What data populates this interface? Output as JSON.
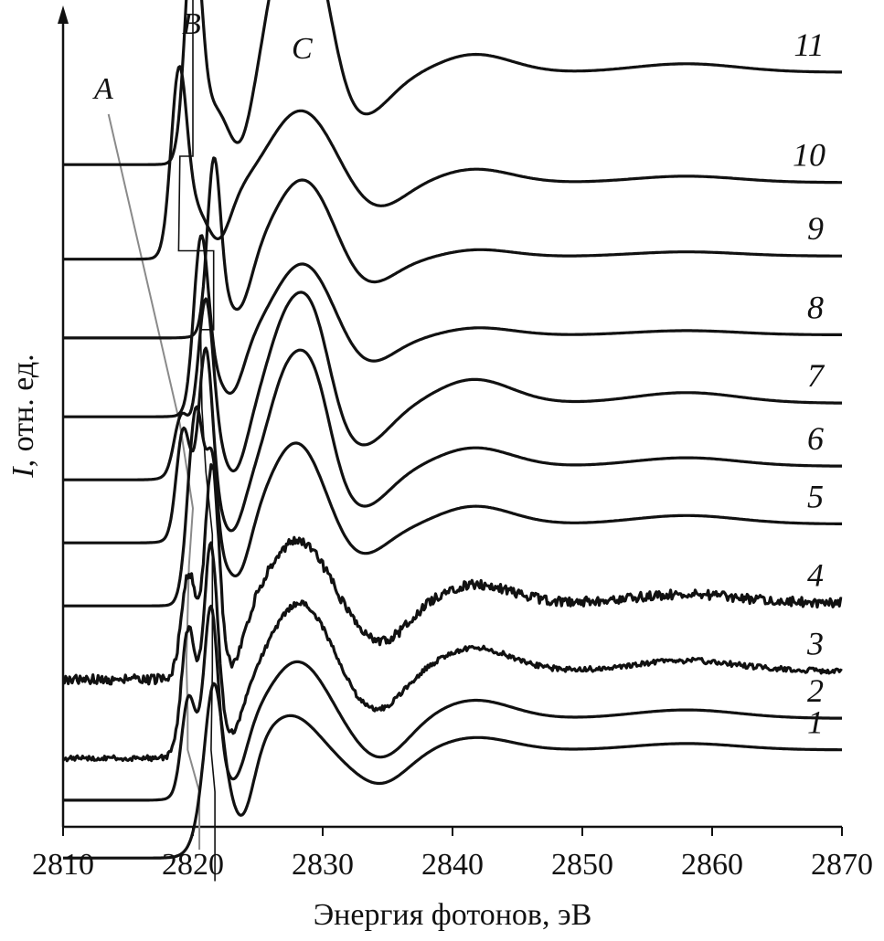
{
  "chart_data": {
    "type": "line",
    "title": "",
    "xlabel": "Энергия фотонов, эВ",
    "ylabel_italic": "I",
    "ylabel_rest": ", отн. ед.",
    "xlim": [
      2810,
      2870
    ],
    "xticks": [
      2810,
      2820,
      2830,
      2840,
      2850,
      2860,
      2870
    ],
    "grid": false,
    "legend": "none",
    "feature_labels": [
      "A",
      "B",
      "C"
    ],
    "feature_energies": {
      "A": 2819.6,
      "B": 2820.0,
      "C": 2828.5
    },
    "series": [
      {
        "name": "1",
        "baseline": 0.0,
        "edge": 2820.5,
        "edgeStep": 0.9,
        "peaks": [
          [
            2821.6,
            0.85,
            0.6
          ]
        ],
        "dip": [
          2823.8,
          0.6
        ],
        "broad": [
          [
            2827.5,
            0.45,
            2.2
          ]
        ],
        "lateMin": [
          2834.5,
          0.25
        ],
        "wiggle": 0.15,
        "tail": 0.35,
        "noise": 0
      },
      {
        "name": "2",
        "baseline": 0.55,
        "edge": 2819.6,
        "edgeStep": 0.55,
        "peaks": [
          [
            2819.6,
            0.7,
            0.5
          ],
          [
            2821.4,
            1.35,
            0.5
          ]
        ],
        "dip": [
          2823.2,
          0.45
        ],
        "broad": [
          [
            2828.0,
            0.75,
            2.4
          ]
        ],
        "lateMin": [
          2834.5,
          0.3
        ],
        "wiggle": 0.2,
        "tail": 0.45,
        "noise": 0
      },
      {
        "name": "3",
        "baseline": 0.95,
        "edge": 2819.6,
        "edgeStep": 0.55,
        "peaks": [
          [
            2819.6,
            0.95,
            0.5
          ],
          [
            2821.4,
            1.55,
            0.5
          ]
        ],
        "dip": [
          2823.0,
          0.4
        ],
        "broad": [
          [
            2828.2,
            0.9,
            2.4
          ]
        ],
        "lateMin": [
          2834.0,
          0.3
        ],
        "wiggle": 0.25,
        "tail": 0.5,
        "noise": 0.05
      },
      {
        "name": "4",
        "baseline": 1.7,
        "edge": 2819.6,
        "edgeStep": 0.5,
        "peaks": [
          [
            2819.6,
            0.75,
            0.5
          ],
          [
            2821.5,
            1.65,
            0.5
          ]
        ],
        "dip": [
          2823.0,
          0.45
        ],
        "broad": [
          [
            2828.0,
            0.8,
            2.4
          ]
        ],
        "lateMin": [
          2834.5,
          0.3
        ],
        "wiggle": 0.2,
        "tail": 0.45,
        "noise": 0.09
      },
      {
        "name": "5",
        "baseline": 2.4,
        "edge": 2820.2,
        "edgeStep": 0.55,
        "peaks": [
          [
            2820.2,
            1.6,
            0.6
          ],
          [
            2821.5,
            0.8,
            0.4
          ]
        ],
        "dip": [
          2823.5,
          0.4
        ],
        "broad": [
          [
            2828.0,
            1.0,
            2.3
          ]
        ],
        "lateMin": [
          2832.5,
          0.25
        ],
        "wiggle": 0.2,
        "tail": 0.45,
        "noise": 0
      },
      {
        "name": "6",
        "baseline": 3.0,
        "edge": 2819.2,
        "edgeStep": 0.55,
        "peaks": [
          [
            2819.2,
            0.8,
            0.5
          ],
          [
            2821.0,
            1.35,
            0.5
          ]
        ],
        "dip": [
          2823.0,
          0.45
        ],
        "broad": [
          [
            2827.0,
            0.85,
            1.4
          ],
          [
            2829.3,
            0.95,
            1.4
          ]
        ],
        "lateMin": [
          2833.0,
          0.3
        ],
        "wiggle": 0.2,
        "tail": 0.4,
        "noise": 0
      },
      {
        "name": "7",
        "baseline": 3.6,
        "edge": 2819.0,
        "edgeStep": 0.5,
        "peaks": [
          [
            2819.0,
            0.35,
            0.5
          ],
          [
            2821.0,
            1.25,
            0.55
          ]
        ],
        "dip": [
          2823.2,
          0.45
        ],
        "broad": [
          [
            2827.0,
            0.85,
            1.5
          ],
          [
            2829.3,
            0.9,
            1.4
          ]
        ],
        "lateMin": [
          2833.0,
          0.3
        ],
        "wiggle": 0.25,
        "tail": 0.45,
        "noise": 0
      },
      {
        "name": "8",
        "baseline": 4.2,
        "edge": 2820.6,
        "edgeStep": 0.55,
        "peaks": [
          [
            2820.6,
            1.45,
            0.55
          ]
        ],
        "dip": [
          2823.0,
          0.4
        ],
        "broad": [
          [
            2828.5,
            0.9,
            2.5
          ]
        ],
        "lateMin": [
          2833.0,
          0.25
        ],
        "wiggle": 0.1,
        "tail": 0.45,
        "noise": 0
      },
      {
        "name": "9",
        "baseline": 4.95,
        "edge": 2821.6,
        "edgeStep": 0.55,
        "peaks": [
          [
            2821.6,
            1.45,
            0.5
          ]
        ],
        "dip": [
          2823.6,
          0.4
        ],
        "broad": [
          [
            2828.5,
            0.95,
            2.5
          ]
        ],
        "lateMin": [
          2833.0,
          0.25
        ],
        "wiggle": 0.1,
        "tail": 0.45,
        "noise": 0
      },
      {
        "name": "10",
        "baseline": 5.7,
        "edge": 2818.9,
        "edgeStep": 0.55,
        "peaks": [
          [
            2818.9,
            1.55,
            0.6
          ]
        ],
        "dip": [
          2822.0,
          0.4
        ],
        "broad": [
          [
            2828.3,
            0.85,
            2.6
          ]
        ],
        "lateMin": [
          2834.0,
          0.2
        ],
        "wiggle": 0.15,
        "tail": 0.4,
        "noise": 0
      },
      {
        "name": "11",
        "baseline": 6.6,
        "edge": 2820.0,
        "edgeStep": 0.6,
        "peaks": [
          [
            2820.0,
            2.05,
            0.6
          ]
        ],
        "dip": [
          2823.6,
          0.45
        ],
        "broad": [
          [
            2827.0,
            1.25,
            1.4
          ],
          [
            2829.3,
            1.25,
            1.5
          ]
        ],
        "lateMin": [
          2833.0,
          0.3
        ],
        "wiggle": 0.2,
        "tail": 0.5,
        "noise": 0
      }
    ],
    "guide_A": [
      [
        2813.5,
        7.0
      ],
      [
        2819.0,
        4.05
      ],
      [
        2819.5,
        3.65
      ],
      [
        2820.0,
        3.25
      ],
      [
        2819.7,
        2.7
      ],
      [
        2819.5,
        1.8
      ],
      [
        2819.6,
        1.3
      ],
      [
        2819.6,
        0.95
      ],
      [
        2820.5,
        0.55
      ],
      [
        2820.5,
        0.0
      ]
    ],
    "guide_B": [
      [
        2820.0,
        8.55
      ],
      [
        2820.0,
        6.6
      ],
      [
        2819.0,
        6.6
      ],
      [
        2818.9,
        5.7
      ],
      [
        2821.6,
        5.7
      ],
      [
        2821.6,
        4.95
      ],
      [
        2820.6,
        4.95
      ],
      [
        2820.7,
        4.2
      ],
      [
        2821.0,
        3.6
      ],
      [
        2821.5,
        3.0
      ],
      [
        2821.5,
        2.4
      ],
      [
        2821.5,
        1.7
      ],
      [
        2821.4,
        0.95
      ],
      [
        2821.7,
        0.55
      ],
      [
        2821.7,
        -0.3
      ]
    ]
  }
}
